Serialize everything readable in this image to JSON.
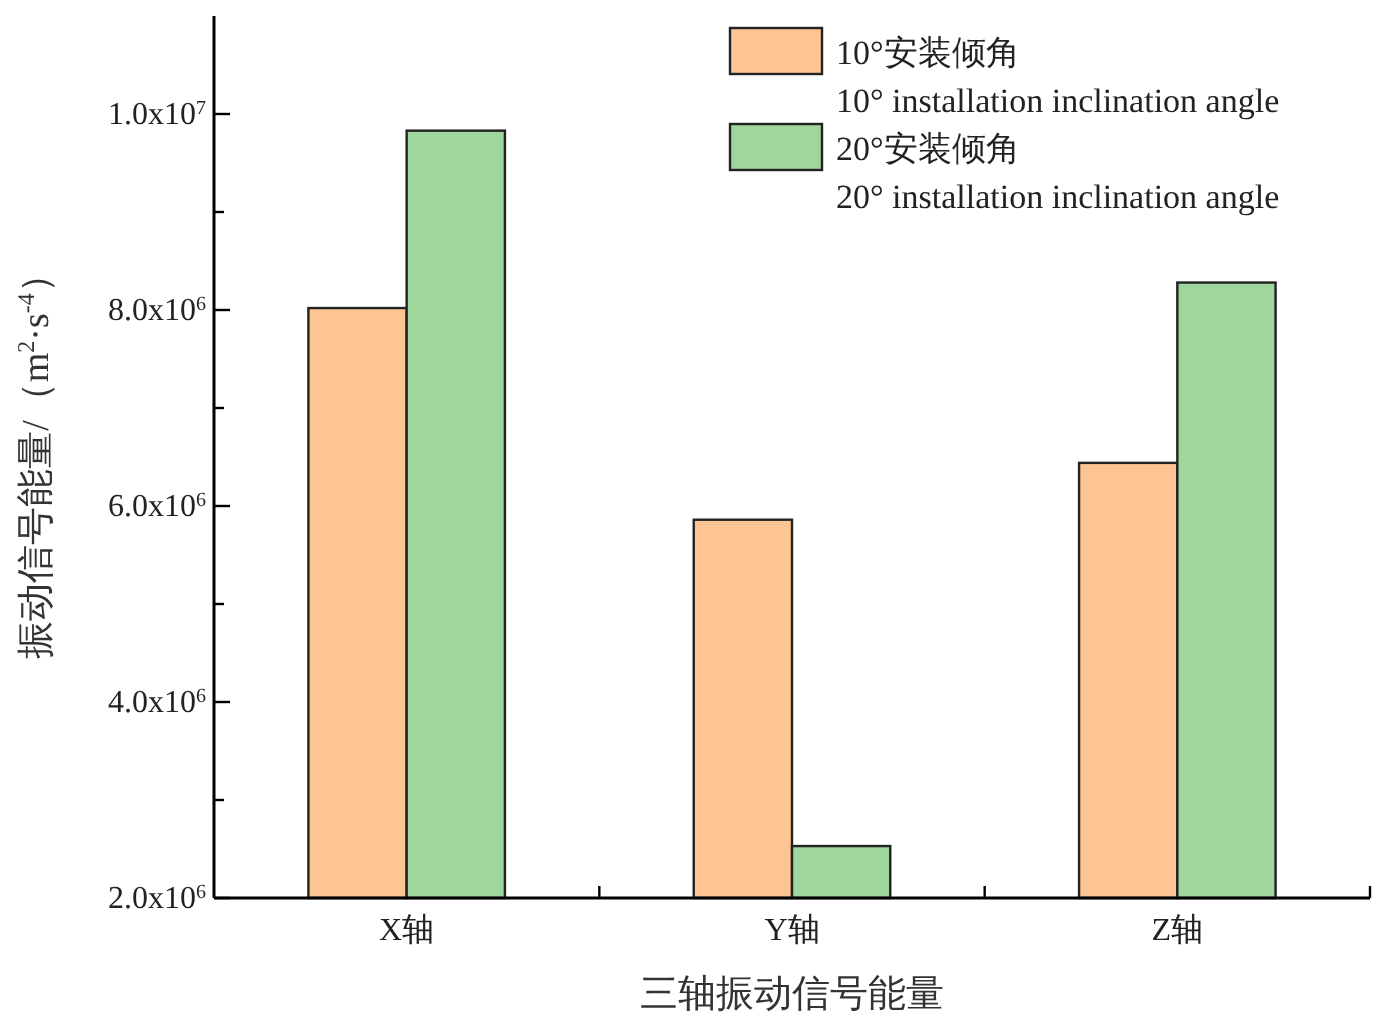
{
  "chart_data": {
    "type": "bar",
    "xlabel": "三轴振动信号能量",
    "ylabel": "振动信号能量/（m$^{2}$·s$^{-4}$）",
    "categories": [
      "X轴",
      "Y轴",
      "Z轴"
    ],
    "series": [
      {
        "name": "10°安装倾角\n10° installation inclination angle",
        "color": "#fdc593",
        "values": [
          8020000,
          5860000,
          6440000
        ]
      },
      {
        "name": "20°安装倾角\n20° installation inclination angle",
        "color": "#9fd69b",
        "values": [
          9830000,
          2530000,
          8280000
        ]
      }
    ],
    "ylim": [
      2000000,
      11000000
    ],
    "yticks": [
      {
        "value": 2000000,
        "label": "2.0x10$^{6}$"
      },
      {
        "value": 3000000,
        "label": null
      },
      {
        "value": 4000000,
        "label": "4.0x10$^{6}$"
      },
      {
        "value": 5000000,
        "label": null
      },
      {
        "value": 6000000,
        "label": "6.0x10$^{6}$"
      },
      {
        "value": 7000000,
        "label": null
      },
      {
        "value": 8000000,
        "label": "8.0x10$^{6}$"
      },
      {
        "value": 9000000,
        "label": null
      },
      {
        "value": 10000000,
        "label": "1.0x10$^{7}$"
      }
    ],
    "grid": false,
    "legend": "top right"
  }
}
